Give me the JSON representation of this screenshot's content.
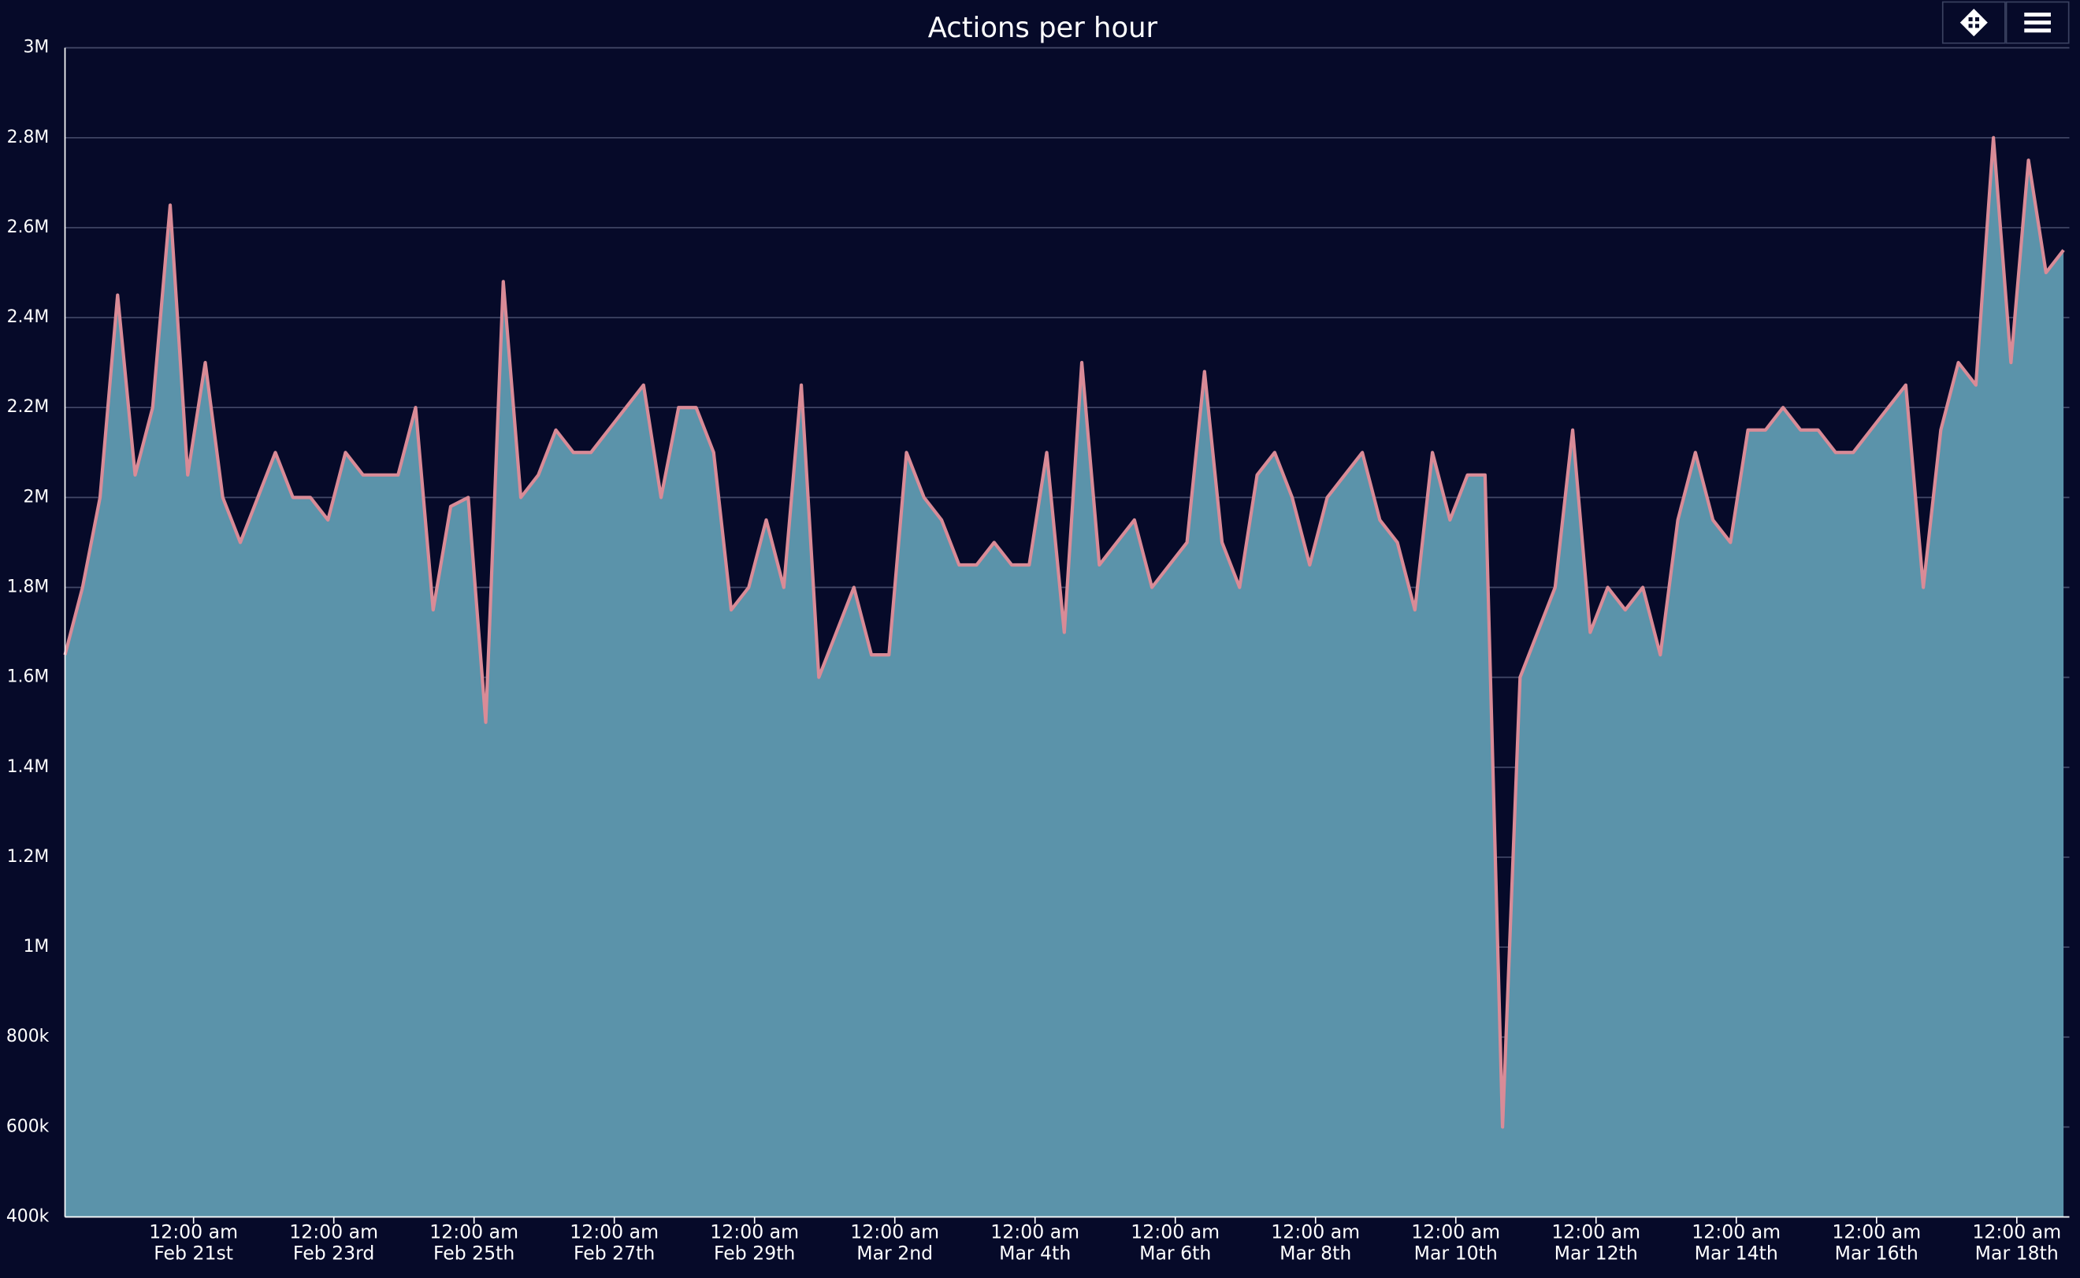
{
  "chart_data": {
    "type": "area",
    "title": "Actions per hour",
    "x": [
      "02-19 04:00",
      "02-19 10:00",
      "02-19 16:00",
      "02-19 22:00",
      "02-20 04:00",
      "02-20 10:00",
      "02-20 16:00",
      "02-20 22:00",
      "02-21 04:00",
      "02-21 10:00",
      "02-21 16:00",
      "02-21 22:00",
      "02-22 04:00",
      "02-22 10:00",
      "02-22 16:00",
      "02-22 22:00",
      "02-23 04:00",
      "02-23 10:00",
      "02-23 16:00",
      "02-23 22:00",
      "02-24 04:00",
      "02-24 10:00",
      "02-24 16:00",
      "02-24 22:00",
      "02-25 04:00",
      "02-25 10:00",
      "02-25 16:00",
      "02-25 22:00",
      "02-26 04:00",
      "02-26 10:00",
      "02-26 16:00",
      "02-26 22:00",
      "02-27 04:00",
      "02-27 10:00",
      "02-27 16:00",
      "02-27 22:00",
      "02-28 04:00",
      "02-28 10:00",
      "02-28 16:00",
      "02-28 22:00",
      "02-29 04:00",
      "02-29 10:00",
      "02-29 16:00",
      "02-29 22:00",
      "03-01 04:00",
      "03-01 10:00",
      "03-01 16:00",
      "03-01 22:00",
      "03-02 04:00",
      "03-02 10:00",
      "03-02 16:00",
      "03-02 22:00",
      "03-03 04:00",
      "03-03 10:00",
      "03-03 16:00",
      "03-03 22:00",
      "03-04 04:00",
      "03-04 10:00",
      "03-04 16:00",
      "03-04 22:00",
      "03-05 04:00",
      "03-05 10:00",
      "03-05 16:00",
      "03-05 22:00",
      "03-06 04:00",
      "03-06 10:00",
      "03-06 16:00",
      "03-06 22:00",
      "03-07 04:00",
      "03-07 10:00",
      "03-07 16:00",
      "03-07 22:00",
      "03-08 04:00",
      "03-08 10:00",
      "03-08 16:00",
      "03-08 22:00",
      "03-09 04:00",
      "03-09 10:00",
      "03-09 16:00",
      "03-09 22:00",
      "03-10 04:00",
      "03-10 10:00",
      "03-10 16:00",
      "03-10 22:00",
      "03-11 04:00",
      "03-11 10:00",
      "03-11 16:00",
      "03-11 22:00",
      "03-12 04:00",
      "03-12 10:00",
      "03-12 16:00",
      "03-12 22:00",
      "03-13 04:00",
      "03-13 10:00",
      "03-13 16:00",
      "03-13 22:00",
      "03-14 04:00",
      "03-14 10:00",
      "03-14 16:00",
      "03-14 22:00",
      "03-15 04:00",
      "03-15 10:00",
      "03-15 16:00",
      "03-15 22:00",
      "03-16 04:00",
      "03-16 10:00",
      "03-16 16:00",
      "03-16 22:00",
      "03-17 04:00",
      "03-17 10:00",
      "03-17 16:00",
      "03-17 22:00",
      "03-18 04:00",
      "03-18 10:00",
      "03-18 16:00"
    ],
    "values": [
      1650000,
      1800000,
      2000000,
      2450000,
      2050000,
      2200000,
      2650000,
      2050000,
      2300000,
      2000000,
      1900000,
      2000000,
      2100000,
      2000000,
      2000000,
      1950000,
      2100000,
      2050000,
      2050000,
      2050000,
      2200000,
      1750000,
      1980000,
      2000000,
      1500000,
      2480000,
      2000000,
      2050000,
      2150000,
      2100000,
      2100000,
      2150000,
      2200000,
      2250000,
      2000000,
      2200000,
      2200000,
      2100000,
      1750000,
      1800000,
      1950000,
      1800000,
      2250000,
      1600000,
      1700000,
      1800000,
      1650000,
      1650000,
      2100000,
      2000000,
      1950000,
      1850000,
      1850000,
      1900000,
      1850000,
      1850000,
      2100000,
      1700000,
      2300000,
      1850000,
      1900000,
      1950000,
      1800000,
      1850000,
      1900000,
      2280000,
      1900000,
      1800000,
      2050000,
      2100000,
      2000000,
      1850000,
      2000000,
      2050000,
      2100000,
      1950000,
      1900000,
      1750000,
      2100000,
      1950000,
      2050000,
      2050000,
      600000,
      1600000,
      1700000,
      1800000,
      2150000,
      1700000,
      1800000,
      1750000,
      1800000,
      1650000,
      1950000,
      2100000,
      1950000,
      1900000,
      2150000,
      2150000,
      2200000,
      2150000,
      2150000,
      2100000,
      2100000,
      2150000,
      2200000,
      2250000,
      1800000,
      2150000,
      2300000,
      2250000,
      2800000,
      2300000,
      2750000,
      2500000,
      2550000
    ],
    "color": "#5b93aa",
    "line_color": "#d98b97",
    "xlim": [
      "02-19 04:00",
      "03-18 18:00"
    ],
    "xticks": [
      {
        "value": "02-21 00:00",
        "label": "12:00 am\nFeb 21st"
      },
      {
        "value": "02-23 00:00",
        "label": "12:00 am\nFeb 23rd"
      },
      {
        "value": "02-25 00:00",
        "label": "12:00 am\nFeb 25th"
      },
      {
        "value": "02-27 00:00",
        "label": "12:00 am\nFeb 27th"
      },
      {
        "value": "02-29 00:00",
        "label": "12:00 am\nFeb 29th"
      },
      {
        "value": "03-02 00:00",
        "label": "12:00 am\nMar 2nd"
      },
      {
        "value": "03-04 00:00",
        "label": "12:00 am\nMar 4th"
      },
      {
        "value": "03-06 00:00",
        "label": "12:00 am\nMar 6th"
      },
      {
        "value": "03-08 00:00",
        "label": "12:00 am\nMar 8th"
      },
      {
        "value": "03-10 00:00",
        "label": "12:00 am\nMar 10th"
      },
      {
        "value": "03-12 00:00",
        "label": "12:00 am\nMar 12th"
      },
      {
        "value": "03-14 00:00",
        "label": "12:00 am\nMar 14th"
      },
      {
        "value": "03-16 00:00",
        "label": "12:00 am\nMar 16th"
      },
      {
        "value": "03-18 00:00",
        "label": "12:00 am\nMar 18th"
      }
    ],
    "ylim": [
      400000,
      3000000
    ],
    "yticks": [
      {
        "value": 400000,
        "label": "400k"
      },
      {
        "value": 600000,
        "label": "600k"
      },
      {
        "value": 800000,
        "label": "800k"
      },
      {
        "value": 1000000,
        "label": "1M"
      },
      {
        "value": 1200000,
        "label": "1.2M"
      },
      {
        "value": 1400000,
        "label": "1.4M"
      },
      {
        "value": 1600000,
        "label": "1.6M"
      },
      {
        "value": 1800000,
        "label": "1.8M"
      },
      {
        "value": 2000000,
        "label": "2M"
      },
      {
        "value": 2200000,
        "label": "2.2M"
      },
      {
        "value": 2400000,
        "label": "2.4M"
      },
      {
        "value": 2600000,
        "label": "2.6M"
      },
      {
        "value": 2800000,
        "label": "2.8M"
      },
      {
        "value": 3000000,
        "label": "3M"
      }
    ],
    "grid": true
  }
}
